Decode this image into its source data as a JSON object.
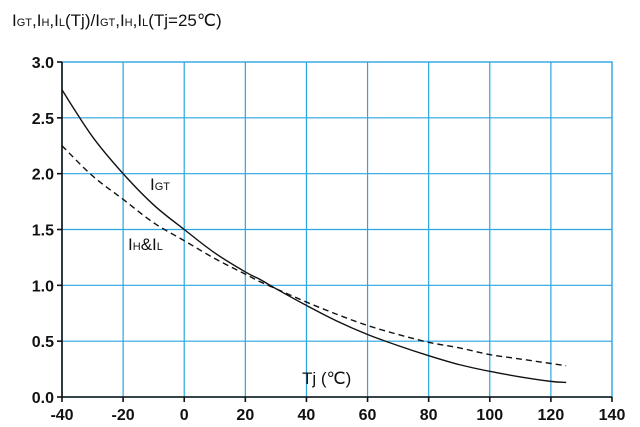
{
  "chart_data": {
    "type": "line",
    "title": {
      "parts": [
        {
          "t": "I",
          "sub": false
        },
        {
          "t": "GT",
          "sub": true
        },
        {
          "t": ",I",
          "sub": false
        },
        {
          "t": "H",
          "sub": true
        },
        {
          "t": ",I",
          "sub": false
        },
        {
          "t": "L",
          "sub": true
        },
        {
          "t": "(Tj)/I",
          "sub": false
        },
        {
          "t": "GT",
          "sub": true
        },
        {
          "t": ",I",
          "sub": false
        },
        {
          "t": "H",
          "sub": true
        },
        {
          "t": ",I",
          "sub": false
        },
        {
          "t": "L",
          "sub": true
        },
        {
          "t": "(Tj=25℃)",
          "sub": false
        }
      ]
    },
    "xlabel": "Tj (℃)",
    "xlim": [
      -40,
      140
    ],
    "ylim": [
      0,
      3.0
    ],
    "x_ticks": [
      -40,
      -20,
      0,
      20,
      40,
      60,
      80,
      100,
      120,
      140
    ],
    "y_ticks": [
      0.0,
      0.5,
      1.0,
      1.5,
      2.0,
      2.5,
      3.0
    ],
    "x_tick_labels": [
      "-40",
      "-20",
      "0",
      "20",
      "40",
      "60",
      "80",
      "100",
      "120",
      "140"
    ],
    "y_tick_labels": [
      "0.0",
      "0.5",
      "1.0",
      "1.5",
      "2.0",
      "2.5",
      "3.0"
    ],
    "grid": true,
    "series": [
      {
        "name": "IGT",
        "label_parts": [
          {
            "t": "I",
            "sub": false
          },
          {
            "t": "GT",
            "sub": true
          }
        ],
        "style": "solid",
        "color": "#111111",
        "x": [
          -40,
          -30,
          -20,
          -10,
          0,
          10,
          20,
          25,
          30,
          40,
          50,
          60,
          70,
          80,
          90,
          100,
          110,
          120,
          125
        ],
        "y": [
          2.75,
          2.33,
          2.0,
          1.72,
          1.5,
          1.29,
          1.12,
          1.05,
          0.97,
          0.82,
          0.68,
          0.56,
          0.46,
          0.37,
          0.29,
          0.23,
          0.18,
          0.14,
          0.13
        ]
      },
      {
        "name": "IH&IL",
        "label_parts": [
          {
            "t": "I",
            "sub": false
          },
          {
            "t": "H",
            "sub": true
          },
          {
            "t": "&I",
            "sub": false
          },
          {
            "t": "L",
            "sub": true
          }
        ],
        "style": "dashed",
        "color": "#111111",
        "x": [
          -40,
          -30,
          -20,
          -10,
          0,
          10,
          20,
          25,
          30,
          40,
          50,
          60,
          70,
          80,
          90,
          100,
          110,
          120,
          125
        ],
        "y": [
          2.25,
          1.98,
          1.77,
          1.56,
          1.4,
          1.24,
          1.1,
          1.03,
          0.97,
          0.85,
          0.74,
          0.64,
          0.56,
          0.49,
          0.44,
          0.38,
          0.34,
          0.3,
          0.28
        ]
      }
    ]
  }
}
